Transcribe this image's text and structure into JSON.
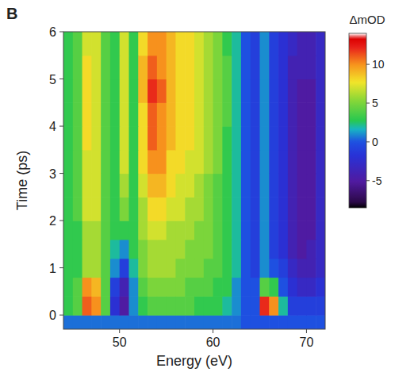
{
  "chart_data": {
    "type": "heatmap",
    "panel": "B",
    "x_label": "Energy (eV)",
    "y_label": "Time (ps)",
    "xlim": [
      44,
      72
    ],
    "ylim": [
      -0.3,
      6
    ],
    "xticks": [
      50,
      60,
      70
    ],
    "yticks": [
      0,
      1,
      2,
      3,
      4,
      5,
      6
    ],
    "x_bins": [
      44,
      45,
      46,
      47,
      48,
      49,
      50,
      51,
      52,
      53,
      54,
      55,
      56,
      57,
      58,
      59,
      60,
      61,
      62,
      63,
      64,
      65,
      66,
      67,
      68,
      69,
      70,
      71,
      72
    ],
    "y_bins": [
      -0.3,
      0,
      0.4,
      0.8,
      1.2,
      1.6,
      2,
      2.5,
      3,
      3.5,
      4,
      4.5,
      5,
      5.5,
      6
    ],
    "values": [
      [
        0.5,
        0.5,
        0.5,
        0.5,
        0.5,
        0.5,
        0.5,
        0.5,
        0.5,
        0.5,
        0.5,
        0.5,
        0.5,
        0.5,
        0.5,
        0.5,
        0.5,
        0.5,
        0.5,
        0,
        0,
        0,
        0,
        0,
        0,
        0,
        0,
        0
      ],
      [
        3,
        4,
        11,
        10,
        4,
        -2,
        -5,
        1,
        3,
        4,
        4,
        4,
        4,
        4,
        3,
        3,
        3,
        2,
        1,
        0,
        0,
        12,
        10,
        2,
        -1,
        -1,
        -1,
        -1
      ],
      [
        3,
        4,
        10,
        9,
        4,
        -1,
        -4,
        1,
        4,
        5,
        5,
        5,
        5,
        4,
        4,
        4,
        3,
        3,
        1,
        0,
        0,
        4,
        3,
        0,
        -2,
        -3,
        -3,
        -2
      ],
      [
        3,
        3,
        6,
        6,
        4,
        1,
        -1,
        2,
        5,
        6,
        6,
        6,
        5,
        5,
        5,
        4,
        4,
        3,
        2,
        0,
        -1,
        1,
        0,
        -1,
        -3,
        -4,
        -4,
        -3
      ],
      [
        3,
        3,
        6,
        6,
        4,
        2,
        1,
        3,
        5,
        6,
        6,
        6,
        6,
        5,
        5,
        5,
        4,
        3,
        2,
        0,
        -1,
        1,
        -1,
        -2,
        -4,
        -5,
        -4,
        -3
      ],
      [
        3,
        3,
        6,
        6,
        4,
        3,
        3,
        3,
        6,
        7,
        7,
        6,
        6,
        6,
        5,
        5,
        4,
        3,
        2,
        0,
        -1,
        1,
        -1,
        -2,
        -4,
        -5,
        -5,
        -3
      ],
      [
        3,
        4,
        7,
        7,
        4,
        3,
        5,
        3,
        6,
        8,
        8,
        7,
        7,
        6,
        6,
        5,
        4,
        3,
        2,
        0,
        -1,
        1,
        -1,
        -2,
        -4,
        -5,
        -5,
        -3
      ],
      [
        3,
        4,
        7,
        7,
        4,
        3,
        6,
        3,
        7,
        9,
        9,
        8,
        7,
        7,
        6,
        5,
        4,
        3,
        2,
        0,
        -1,
        1,
        -1,
        -2,
        -4,
        -5,
        -5,
        -3
      ],
      [
        3,
        4,
        7,
        7,
        4,
        3,
        7,
        3,
        8,
        10,
        10,
        8,
        8,
        7,
        7,
        6,
        5,
        3,
        2,
        0,
        -1,
        1,
        -1,
        -2,
        -4,
        -5,
        -5,
        -3
      ],
      [
        3,
        4,
        8,
        7,
        4,
        3,
        7,
        3,
        8,
        11,
        10,
        9,
        8,
        8,
        7,
        6,
        5,
        3,
        2,
        0,
        -1,
        1,
        -1,
        -2,
        -4,
        -5,
        -5,
        -3
      ],
      [
        3,
        4,
        8,
        7,
        4,
        3,
        7,
        3,
        8,
        11,
        10,
        9,
        8,
        8,
        7,
        6,
        5,
        4,
        2,
        0,
        -1,
        1,
        -1,
        -2,
        -4,
        -5,
        -5,
        -3
      ],
      [
        3,
        4,
        8,
        7,
        4,
        3,
        7,
        3,
        9,
        12,
        11,
        9,
        8,
        8,
        7,
        6,
        5,
        4,
        2,
        0,
        -1,
        1,
        -1,
        -2,
        -4,
        -5,
        -5,
        -3
      ],
      [
        3,
        4,
        8,
        7,
        4,
        3,
        7,
        3,
        9,
        11,
        10,
        9,
        8,
        8,
        7,
        6,
        5,
        4,
        2,
        0,
        -1,
        1,
        -1,
        -2,
        -4,
        -4,
        -4,
        -3
      ],
      [
        3,
        4,
        7,
        7,
        4,
        3,
        7,
        3,
        8,
        10,
        10,
        9,
        8,
        8,
        7,
        6,
        5,
        3,
        2,
        0,
        -1,
        1,
        -1,
        -2,
        -3,
        -4,
        -4,
        -3
      ]
    ],
    "colorbar": {
      "label": "ΔmOD",
      "range": [
        -8.5,
        14
      ],
      "ticks": [
        -5,
        0,
        5,
        10
      ]
    }
  }
}
